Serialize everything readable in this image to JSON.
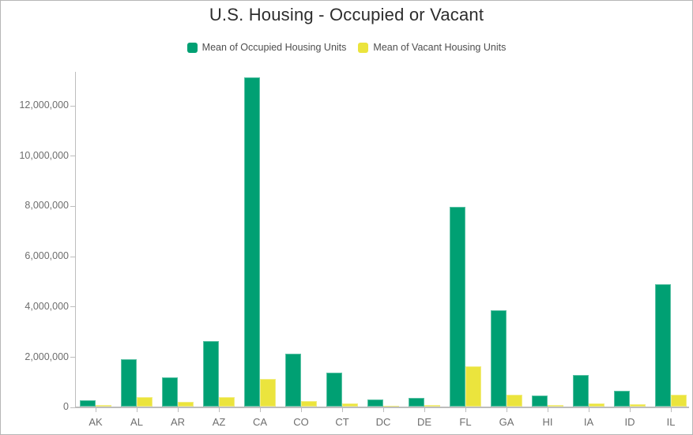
{
  "title": "U.S. Housing - Occupied or Vacant",
  "colors": {
    "occupied": "#00a073",
    "vacant": "#ebe43d",
    "axis_line": "#bdbdbd",
    "axis_text": "#6e6e6e",
    "legend_text": "#4e4e4e",
    "title_text": "#2d2d2d",
    "card_border": "#b6b6b6",
    "background": "#ffffff"
  },
  "legend": {
    "items": [
      {
        "label": "Mean of Occupied Housing Units",
        "color_key": "occupied"
      },
      {
        "label": "Mean of Vacant Housing Units",
        "color_key": "vacant"
      }
    ]
  },
  "chart_data": {
    "type": "bar",
    "title": "U.S. Housing - Occupied or Vacant",
    "categories": [
      "AK",
      "AL",
      "AR",
      "AZ",
      "CA",
      "CO",
      "CT",
      "DC",
      "DE",
      "FL",
      "GA",
      "HI",
      "IA",
      "ID",
      "IL"
    ],
    "series": [
      {
        "name": "Mean of Occupied Housing Units",
        "color_key": "occupied",
        "values": [
          250000,
          1870000,
          1150000,
          2610000,
          13100000,
          2110000,
          1360000,
          270000,
          350000,
          7930000,
          3820000,
          450000,
          1270000,
          640000,
          4870000
        ]
      },
      {
        "name": "Mean of Vacant Housing Units",
        "color_key": "vacant",
        "values": [
          65000,
          380000,
          190000,
          390000,
          1100000,
          210000,
          120000,
          30000,
          60000,
          1600000,
          470000,
          65000,
          135000,
          95000,
          480000
        ]
      }
    ],
    "xlabel": "",
    "ylabel": "",
    "ylim": [
      0,
      13100000
    ],
    "yticks": [
      0,
      2000000,
      4000000,
      6000000,
      8000000,
      10000000,
      12000000
    ],
    "ytick_labels": [
      "0",
      "2,000,000",
      "4,000,000",
      "6,000,000",
      "8,000,000",
      "10,000,000",
      "12,000,000"
    ],
    "grid": false,
    "legend_position": "top"
  }
}
